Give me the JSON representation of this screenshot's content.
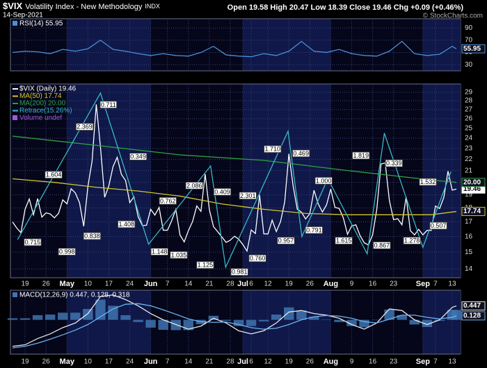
{
  "header": {
    "symbol": "$VIX",
    "name": "Volatility Index - New Methodology",
    "exchange": "INDX",
    "date": "14-Sep-2021",
    "quote": "Open 19.58  High 20.47  Low 18.39  Close 19.46  Chg +0.09 (+0.46%)",
    "copyright": "© StockCharts.com"
  },
  "chart_data": [
    {
      "type": "line",
      "title": "RSI(14) 55.95",
      "xlim": [
        -0.5,
        107
      ],
      "ylim": [
        20,
        105
      ],
      "yticks": [
        30,
        50,
        70,
        90
      ],
      "grid": true,
      "series": [
        {
          "color": "#4a90d9",
          "tag_last": true,
          "x": [
            0,
            3,
            6,
            9,
            12,
            15,
            18,
            21,
            24,
            27,
            30,
            33,
            36,
            39,
            42,
            45,
            48,
            51,
            54,
            57,
            60,
            63,
            66,
            69,
            72,
            75,
            78,
            81,
            84,
            87,
            90,
            93,
            96,
            99,
            102,
            105,
            106
          ],
          "values": [
            50,
            52,
            51,
            48,
            55,
            52,
            56,
            70,
            55,
            52,
            48,
            45,
            48,
            45,
            44,
            50,
            60,
            46,
            44,
            43,
            48,
            45,
            52,
            68,
            52,
            50,
            55,
            48,
            45,
            44,
            52,
            68,
            48,
            45,
            47,
            60,
            55.95
          ]
        }
      ]
    },
    {
      "type": "line",
      "log_scale": true,
      "xlim": [
        -0.5,
        107
      ],
      "ylim": [
        13.5,
        30
      ],
      "yticks": [
        14,
        15,
        16,
        17,
        18,
        19,
        20,
        21,
        22,
        23,
        24,
        25,
        26,
        27,
        28,
        29
      ],
      "grid": true,
      "xticks": [
        {
          "value": 3,
          "label": "19"
        },
        {
          "value": 8,
          "label": "26"
        },
        {
          "value": 13,
          "label": "May"
        },
        {
          "value": 18,
          "label": "10"
        },
        {
          "value": 23,
          "label": "17"
        },
        {
          "value": 28,
          "label": "24"
        },
        {
          "value": 33,
          "label": "Jun"
        },
        {
          "value": 37,
          "label": "7"
        },
        {
          "value": 42,
          "label": "14"
        },
        {
          "value": 47,
          "label": "21"
        },
        {
          "value": 52,
          "label": "28"
        },
        {
          "value": 55,
          "label": "Jul"
        },
        {
          "value": 57,
          "label": "6"
        },
        {
          "value": 61,
          "label": "12"
        },
        {
          "value": 66,
          "label": "19"
        },
        {
          "value": 71,
          "label": "26"
        },
        {
          "value": 76,
          "label": "Aug"
        },
        {
          "value": 81,
          "label": "9"
        },
        {
          "value": 86,
          "label": "16"
        },
        {
          "value": 91,
          "label": "23"
        },
        {
          "value": 98,
          "label": "Sep"
        },
        {
          "value": 101,
          "label": "7"
        },
        {
          "value": 105,
          "label": "13"
        }
      ],
      "series": [
        {
          "name": "$VIX (Daily) 19.46",
          "color": "#ffffff",
          "tag_last": true,
          "x": [
            0,
            1,
            2,
            3,
            4,
            5,
            6,
            7,
            8,
            9,
            10,
            11,
            12,
            13,
            14,
            15,
            16,
            17,
            18,
            19,
            20,
            21,
            22,
            23,
            24,
            25,
            26,
            27,
            28,
            29,
            30,
            31,
            32,
            33,
            34,
            35,
            36,
            37,
            38,
            39,
            40,
            41,
            42,
            43,
            44,
            45,
            46,
            47,
            48,
            49,
            50,
            51,
            52,
            53,
            54,
            55,
            56,
            57,
            58,
            59,
            60,
            61,
            62,
            63,
            64,
            65,
            66,
            67,
            68,
            69,
            70,
            71,
            72,
            73,
            74,
            75,
            76,
            77,
            78,
            79,
            80,
            81,
            82,
            83,
            84,
            85,
            86,
            87,
            88,
            89,
            90,
            91,
            92,
            93,
            94,
            95,
            96,
            97,
            98,
            99,
            100,
            101,
            102,
            103,
            104,
            105,
            106
          ],
          "values": [
            16.99,
            16.57,
            16.25,
            17.91,
            18.68,
            17.5,
            18.71,
            17.33,
            17.64,
            17.56,
            17.28,
            17.61,
            18.61,
            18.31,
            19.48,
            19.15,
            18.39,
            16.69,
            19.66,
            21.84,
            27.59,
            23.13,
            18.81,
            19.72,
            21.34,
            22.18,
            20.67,
            20.15,
            18.4,
            18.84,
            17.36,
            16.74,
            16.76,
            17.9,
            17.48,
            18.04,
            16.42,
            16.42,
            17.07,
            17.89,
            16.1,
            15.65,
            16.39,
            17.02,
            18.15,
            17.75,
            20.7,
            17.89,
            16.66,
            16.32,
            15.97,
            15.62,
            15.76,
            16.02,
            15.83,
            15.48,
            15.07,
            16.44,
            16.2,
            19,
            16.18,
            16.17,
            17.12,
            16.33,
            17.01,
            18.45,
            22.5,
            19.73,
            17.91,
            17.69,
            17.2,
            17.58,
            19.36,
            18.31,
            17.7,
            18.24,
            19.46,
            18.04,
            17.97,
            17.28,
            16.15,
            16.72,
            16.79,
            16.06,
            15.59,
            15.45,
            16.12,
            17.91,
            21.57,
            21.67,
            18.56,
            17.15,
            17.22,
            16.79,
            18.84,
            16.39,
            16.11,
            16.48,
            16.11,
            16.41,
            16.41,
            18.14,
            17.96,
            18.8,
            20.95,
            19.37,
            19.46
          ]
        },
        {
          "name": "MA(50) 17.74",
          "color": "#d4c62a",
          "tag_last": true,
          "x": [
            0,
            10,
            20,
            30,
            40,
            50,
            60,
            70,
            80,
            90,
            100,
            106
          ],
          "values": [
            20.3,
            20.0,
            19.6,
            19.3,
            18.9,
            18.3,
            17.9,
            17.6,
            17.5,
            17.5,
            17.5,
            17.74
          ]
        },
        {
          "name": "MA(200) 20.00",
          "color": "#2ea043",
          "tag_last": true,
          "x": [
            0,
            20,
            40,
            60,
            80,
            100,
            106
          ],
          "values": [
            24.2,
            23.3,
            22.4,
            21.9,
            21.0,
            20.2,
            20
          ],
          "value_labels": [
            null,
            null,
            null,
            null,
            null,
            null,
            "20.00"
          ]
        },
        {
          "name": "Retrace(15.26%)",
          "color": "#39b8c8",
          "x": [
            1.2,
            21.0,
            32.5,
            47.3,
            50.9,
            65.8,
            69.1,
            75.3,
            84.7,
            88.8,
            98,
            104.7
          ],
          "values": [
            15.8,
            28.9,
            15.5,
            21.4,
            14.1,
            24.7,
            16.0,
            20.3,
            14.9,
            24.5,
            15.3,
            20.9
          ]
        }
      ],
      "legend_note": {
        "text": "Volume undef",
        "color": "#a05ad8"
      },
      "annotations": [
        {
          "x": 4.8,
          "y": 15.6,
          "text": "0.715"
        },
        {
          "x": 9.8,
          "y": 20.6,
          "text": "1.604"
        },
        {
          "x": 13.0,
          "y": 15.0,
          "text": "0.998"
        },
        {
          "x": 19.0,
          "y": 16.0,
          "text": "0.838"
        },
        {
          "x": 17.2,
          "y": 25.1,
          "text": "2.369"
        },
        {
          "x": 22.9,
          "y": 27.5,
          "text": "0.711"
        },
        {
          "x": 30.0,
          "y": 22.2,
          "text": "0.349"
        },
        {
          "x": 27.2,
          "y": 16.8,
          "text": "1.408"
        },
        {
          "x": 35.1,
          "y": 15.0,
          "text": "1.148"
        },
        {
          "x": 37.1,
          "y": 18.5,
          "text": "0.762"
        },
        {
          "x": 43.4,
          "y": 19.7,
          "text": "2.086"
        },
        {
          "x": 39.7,
          "y": 14.8,
          "text": "1.035"
        },
        {
          "x": 50.1,
          "y": 19.2,
          "text": "0.409"
        },
        {
          "x": 46.0,
          "y": 14.2,
          "text": "1.125"
        },
        {
          "x": 54.2,
          "y": 13.8,
          "text": "0.981"
        },
        {
          "x": 56.2,
          "y": 18.9,
          "text": "2.301"
        },
        {
          "x": 58.5,
          "y": 14.6,
          "text": "0.760"
        },
        {
          "x": 62.1,
          "y": 22.9,
          "text": "1.710"
        },
        {
          "x": 65.3,
          "y": 15.7,
          "text": "0.957"
        },
        {
          "x": 68.9,
          "y": 22.5,
          "text": "0.469"
        },
        {
          "x": 72.0,
          "y": 16.4,
          "text": "0.791"
        },
        {
          "x": 74.3,
          "y": 20.1,
          "text": "1.000"
        },
        {
          "x": 79.1,
          "y": 15.7,
          "text": "1.615"
        },
        {
          "x": 83.2,
          "y": 22.3,
          "text": "1.819"
        },
        {
          "x": 88.2,
          "y": 15.4,
          "text": "0.867"
        },
        {
          "x": 91.1,
          "y": 21.6,
          "text": "0.339"
        },
        {
          "x": 95.4,
          "y": 15.7,
          "text": "1.278"
        },
        {
          "x": 99.2,
          "y": 20.0,
          "text": "1.532"
        },
        {
          "x": 101.7,
          "y": 16.7,
          "text": "0.507"
        }
      ]
    },
    {
      "type": "line",
      "title": "MACD(12,26,9) 0.447, 0.128, 0.318",
      "xlim": [
        -0.5,
        107
      ],
      "ylim": [
        -1.1,
        0.95
      ],
      "grid": true,
      "xticks": [
        {
          "value": 3,
          "label": "19"
        },
        {
          "value": 8,
          "label": "26"
        },
        {
          "value": 13,
          "label": "May"
        },
        {
          "value": 18,
          "label": "10"
        },
        {
          "value": 23,
          "label": "17"
        },
        {
          "value": 28,
          "label": "24"
        },
        {
          "value": 33,
          "label": "Jun"
        },
        {
          "value": 37,
          "label": "7"
        },
        {
          "value": 42,
          "label": "14"
        },
        {
          "value": 47,
          "label": "21"
        },
        {
          "value": 52,
          "label": "28"
        },
        {
          "value": 55,
          "label": "Jul"
        },
        {
          "value": 57,
          "label": "6"
        },
        {
          "value": 61,
          "label": "12"
        },
        {
          "value": 66,
          "label": "19"
        },
        {
          "value": 71,
          "label": "26"
        },
        {
          "value": 76,
          "label": "Aug"
        },
        {
          "value": 81,
          "label": "9"
        },
        {
          "value": 86,
          "label": "16"
        },
        {
          "value": 91,
          "label": "23"
        },
        {
          "value": 98,
          "label": "Sep"
        },
        {
          "value": 101,
          "label": "7"
        },
        {
          "value": 105,
          "label": "13"
        }
      ],
      "series": [
        {
          "type": "bar",
          "color": "#3f74b0",
          "x": [
            0,
            3,
            6,
            9,
            12,
            15,
            18,
            21,
            24,
            27,
            30,
            33,
            36,
            39,
            42,
            45,
            48,
            51,
            54,
            57,
            60,
            63,
            66,
            69,
            72,
            75,
            78,
            81,
            84,
            87,
            90,
            93,
            96,
            99,
            102,
            105,
            106
          ],
          "values": [
            0.05,
            0.05,
            0.15,
            0.17,
            0.23,
            0.23,
            0.35,
            0.65,
            0.45,
            0.15,
            -0.07,
            -0.25,
            -0.32,
            -0.33,
            -0.33,
            -0.14,
            0.13,
            -0.03,
            -0.2,
            -0.2,
            -0.05,
            0.17,
            0.4,
            0.3,
            0.1,
            0.01,
            -0.07,
            -0.2,
            -0.24,
            0,
            0.33,
            0.15,
            -0.15,
            -0.23,
            -0.03,
            0.32,
            0.318
          ]
        },
        {
          "color": "#e8e8e8",
          "tag_last": true,
          "x": [
            0,
            3,
            6,
            9,
            12,
            15,
            18,
            21,
            24,
            27,
            30,
            33,
            36,
            39,
            42,
            45,
            48,
            51,
            54,
            57,
            60,
            63,
            66,
            69,
            72,
            75,
            78,
            81,
            84,
            87,
            90,
            93,
            96,
            99,
            102,
            105,
            106
          ],
          "values": [
            -0.85,
            -0.8,
            -0.6,
            -0.45,
            -0.25,
            -0.1,
            0.2,
            0.75,
            0.8,
            0.65,
            0.45,
            0.2,
            0,
            -0.15,
            -0.3,
            -0.2,
            0.05,
            -0.1,
            -0.35,
            -0.45,
            -0.35,
            -0.1,
            0.25,
            0.3,
            0.2,
            0.15,
            0.05,
            -0.15,
            -0.3,
            -0.1,
            0.35,
            0.3,
            0,
            -0.15,
            0,
            0.4,
            0.447
          ]
        },
        {
          "color": "#6cb4f0",
          "tag_last": true,
          "x": [
            0,
            3,
            6,
            9,
            12,
            15,
            18,
            21,
            24,
            27,
            30,
            33,
            36,
            39,
            42,
            45,
            48,
            51,
            54,
            57,
            60,
            63,
            66,
            69,
            72,
            75,
            78,
            81,
            84,
            87,
            90,
            93,
            96,
            99,
            102,
            105,
            106
          ],
          "values": [
            -0.9,
            -0.85,
            -0.75,
            -0.62,
            -0.48,
            -0.33,
            -0.15,
            0.1,
            0.35,
            0.5,
            0.52,
            0.45,
            0.32,
            0.18,
            0.03,
            -0.06,
            -0.08,
            -0.07,
            -0.15,
            -0.25,
            -0.3,
            -0.27,
            -0.15,
            0,
            0.1,
            0.14,
            0.12,
            0.05,
            -0.06,
            -0.1,
            0.02,
            0.15,
            0.15,
            0.08,
            0.03,
            0.08,
            0.128
          ]
        }
      ]
    }
  ]
}
